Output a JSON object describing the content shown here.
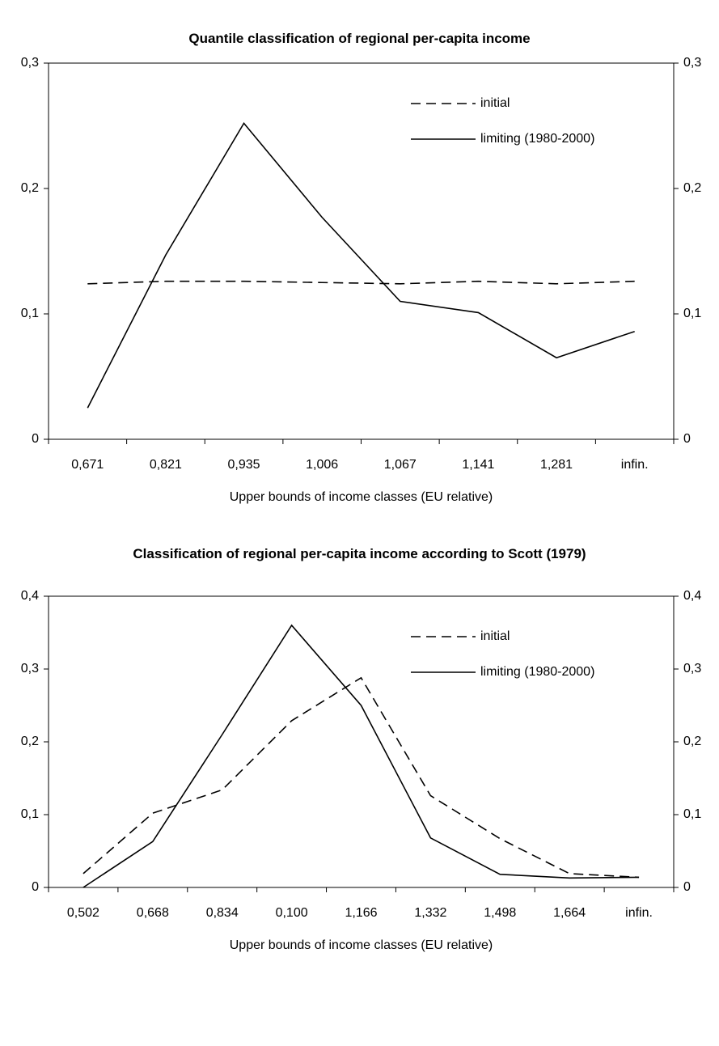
{
  "chart_data": [
    {
      "type": "line",
      "title": "Quantile classification of regional per-capita income",
      "x_label": "Upper bounds of income classes (EU relative)",
      "categories": [
        "0,671",
        "0,821",
        "0,935",
        "1,006",
        "1,067",
        "1,141",
        "1,281",
        "infin."
      ],
      "series": [
        {
          "name": "initial",
          "color": "#000000",
          "line_style": "dashed",
          "values": [
            0.124,
            0.126,
            0.126,
            0.125,
            0.124,
            0.126,
            0.124,
            0.126
          ]
        },
        {
          "name": "limiting (1980-2000)",
          "color": "#000000",
          "line_style": "solid",
          "values": [
            0.025,
            0.147,
            0.252,
            0.177,
            0.11,
            0.101,
            0.065,
            0.086
          ]
        }
      ],
      "ylim": [
        0,
        0.3
      ],
      "yticks": [
        0,
        {
          "value": 0.1,
          "label": "0,1"
        },
        {
          "value": 0.2,
          "label": "0,2"
        },
        {
          "value": 0.3,
          "label": "0,3"
        }
      ],
      "legend": "upper right",
      "grid": false
    },
    {
      "type": "line",
      "title": "Classification of regional per-capita income according to Scott (1979)",
      "x_label": "Upper bounds of income classes (EU relative)",
      "categories": [
        "0,502",
        "0,668",
        "0,834",
        "0,100",
        "1,166",
        "1,332",
        "1,498",
        "1,664",
        "infin."
      ],
      "series": [
        {
          "name": "initial",
          "color": "#000000",
          "line_style": "dashed",
          "values": [
            0.019,
            0.102,
            0.134,
            0.229,
            0.288,
            0.126,
            0.067,
            0.019,
            0.014
          ]
        },
        {
          "name": "limiting (1980-2000)",
          "color": "#000000",
          "line_style": "solid",
          "values": [
            0,
            0.063,
            0.21,
            0.36,
            0.25,
            0.068,
            0.018,
            0.013,
            0.014
          ]
        }
      ],
      "ylim": [
        0,
        0.4
      ],
      "yticks": [
        0,
        {
          "value": 0.1,
          "label": "0,1"
        },
        {
          "value": 0.2,
          "label": "0,2"
        },
        {
          "value": 0.3,
          "label": "0,3"
        },
        {
          "value": 0.4,
          "label": "0,4"
        }
      ],
      "legend": "upper right",
      "grid": false
    }
  ]
}
